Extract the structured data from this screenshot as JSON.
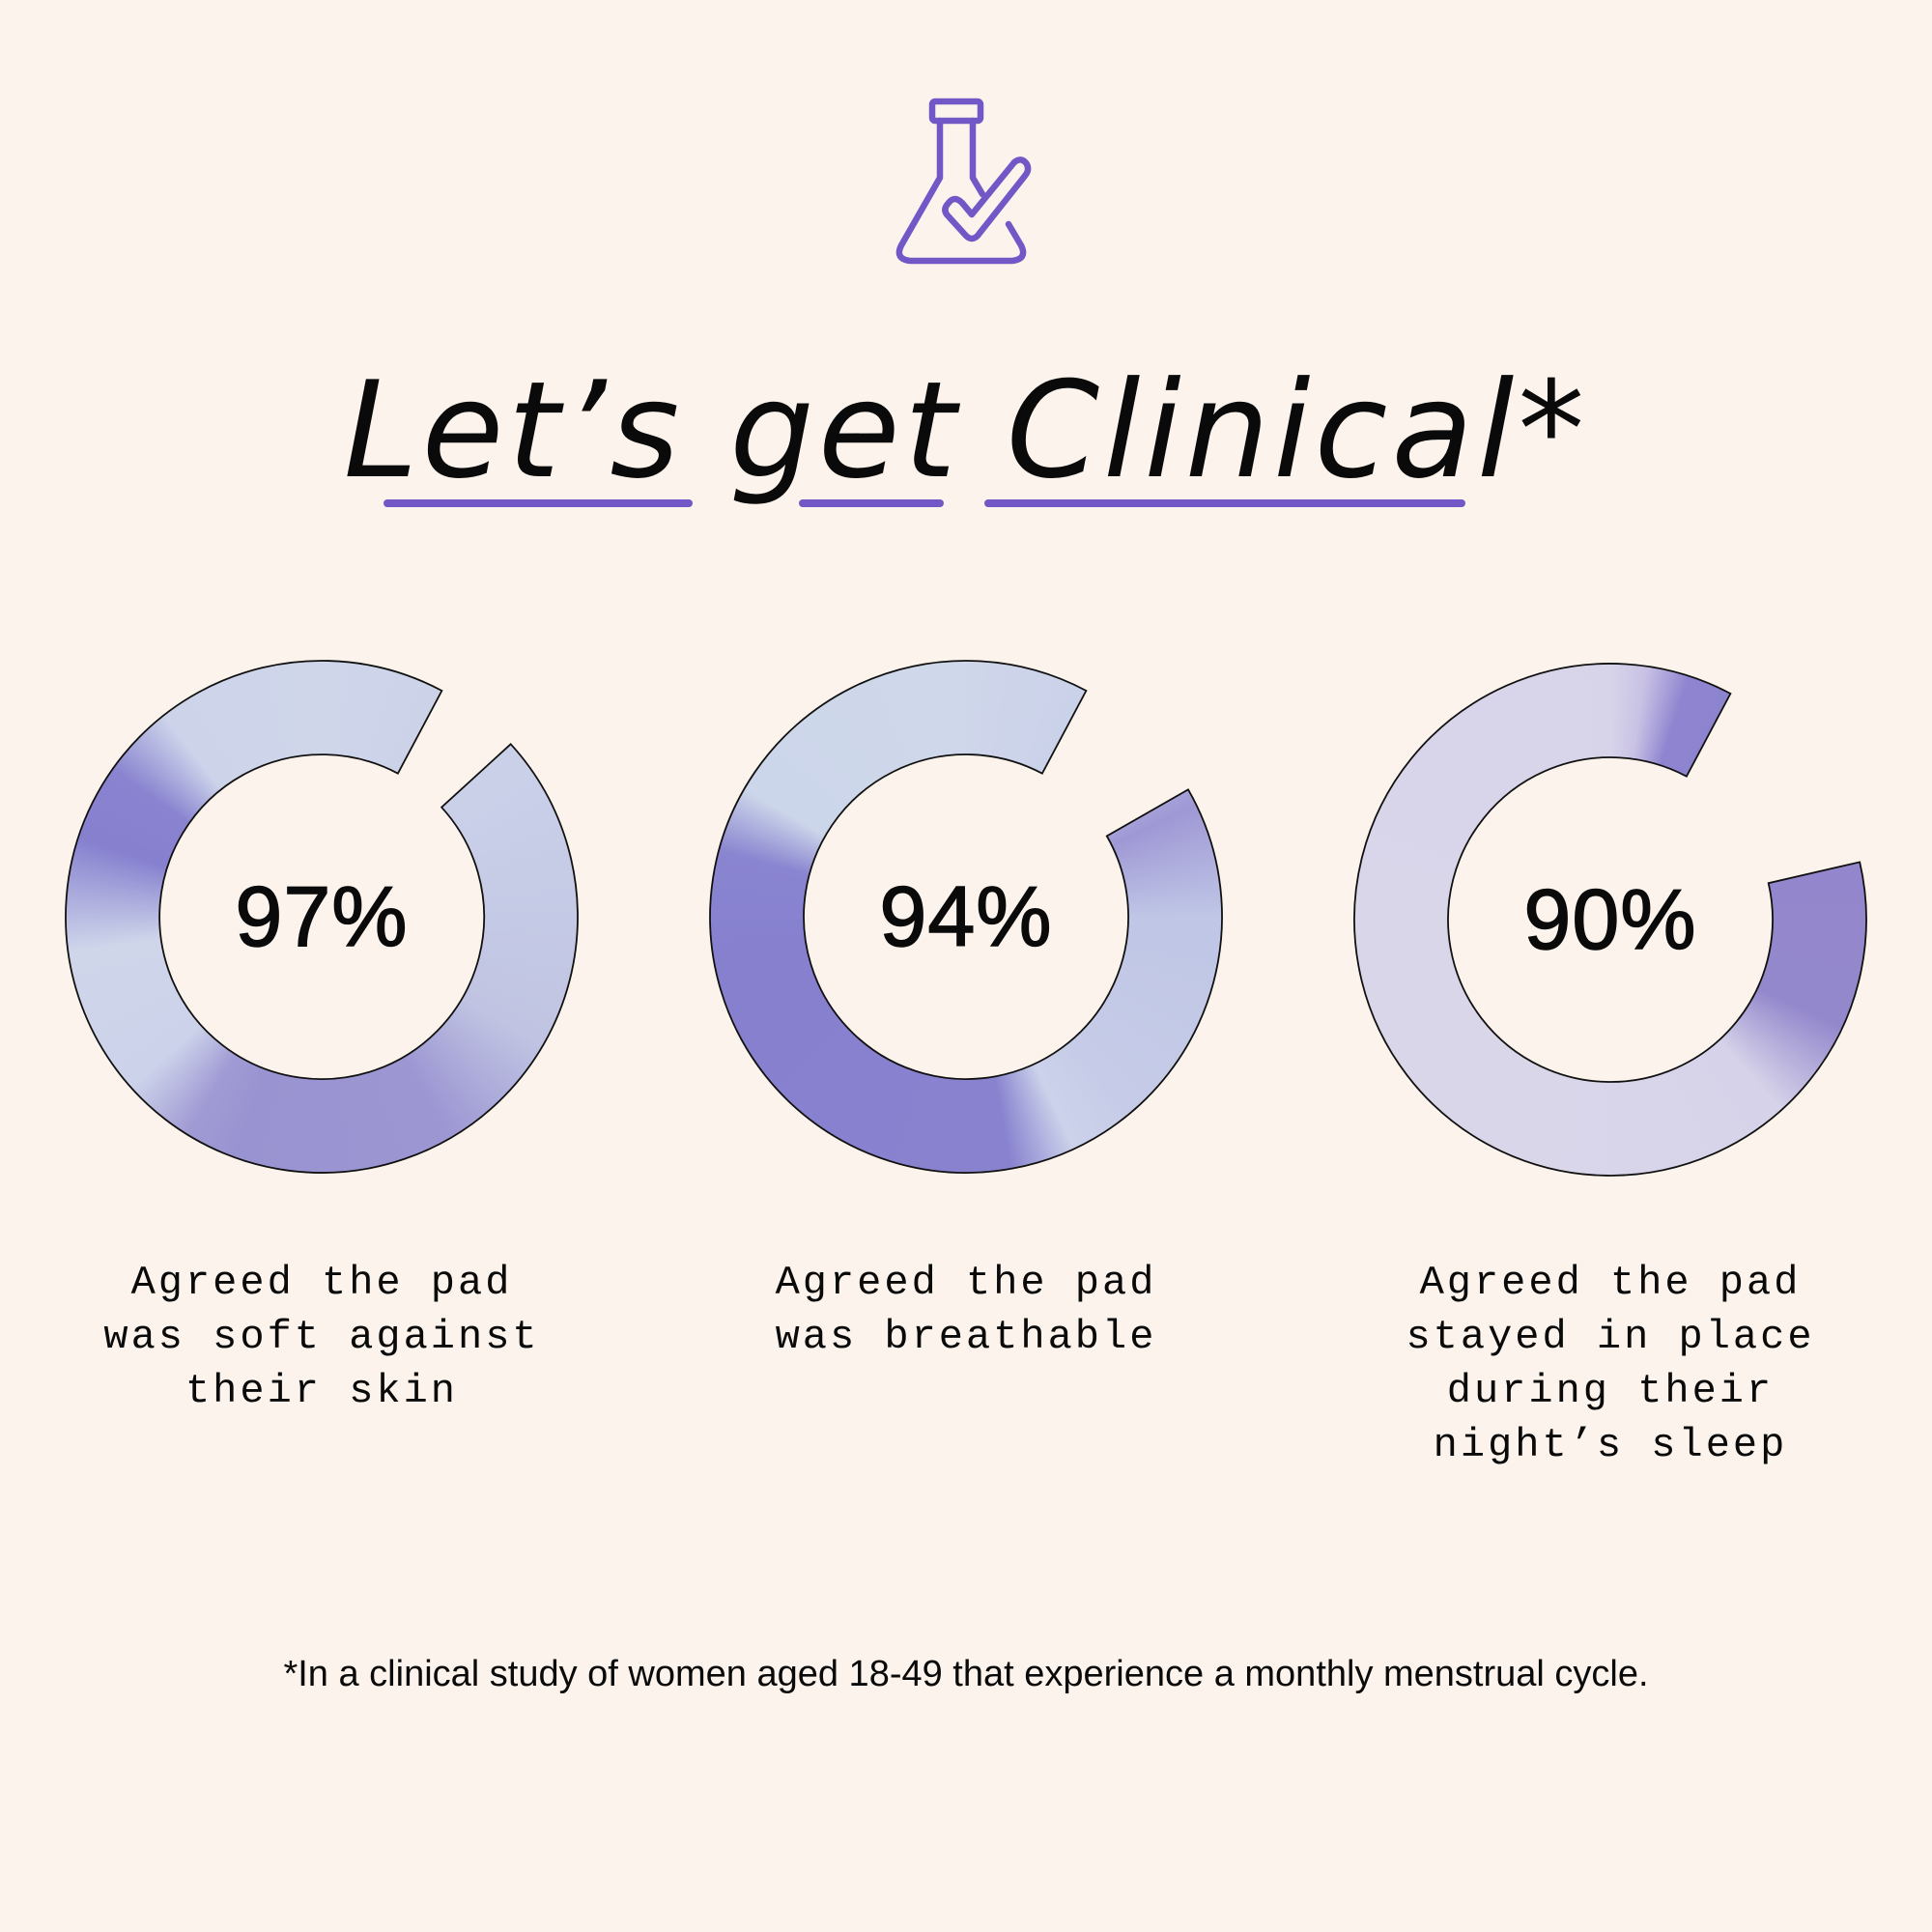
{
  "header": {
    "icon": "flask-check-icon",
    "title_words": [
      "Let’s",
      "get",
      "Clinical*"
    ],
    "accent_color": "#7158c6"
  },
  "chart_data": {
    "type": "donut",
    "title": "Let’s get Clinical*",
    "series": [
      {
        "name": "soft",
        "value": 97,
        "label": "97%",
        "caption": [
          "Agreed the pad",
          "was soft against",
          "their skin"
        ]
      },
      {
        "name": "breathable",
        "value": 94,
        "label": "94%",
        "caption": [
          "Agreed the pad",
          "was breathable"
        ]
      },
      {
        "name": "in-place",
        "value": 90,
        "label": "90%",
        "caption": [
          "Agreed the pad",
          "stayed in place",
          "during their",
          "night’s sleep"
        ]
      }
    ],
    "unit": "%"
  },
  "footnote": "*In a clinical study of women aged 18-49 that experience a monthly menstrual cycle."
}
